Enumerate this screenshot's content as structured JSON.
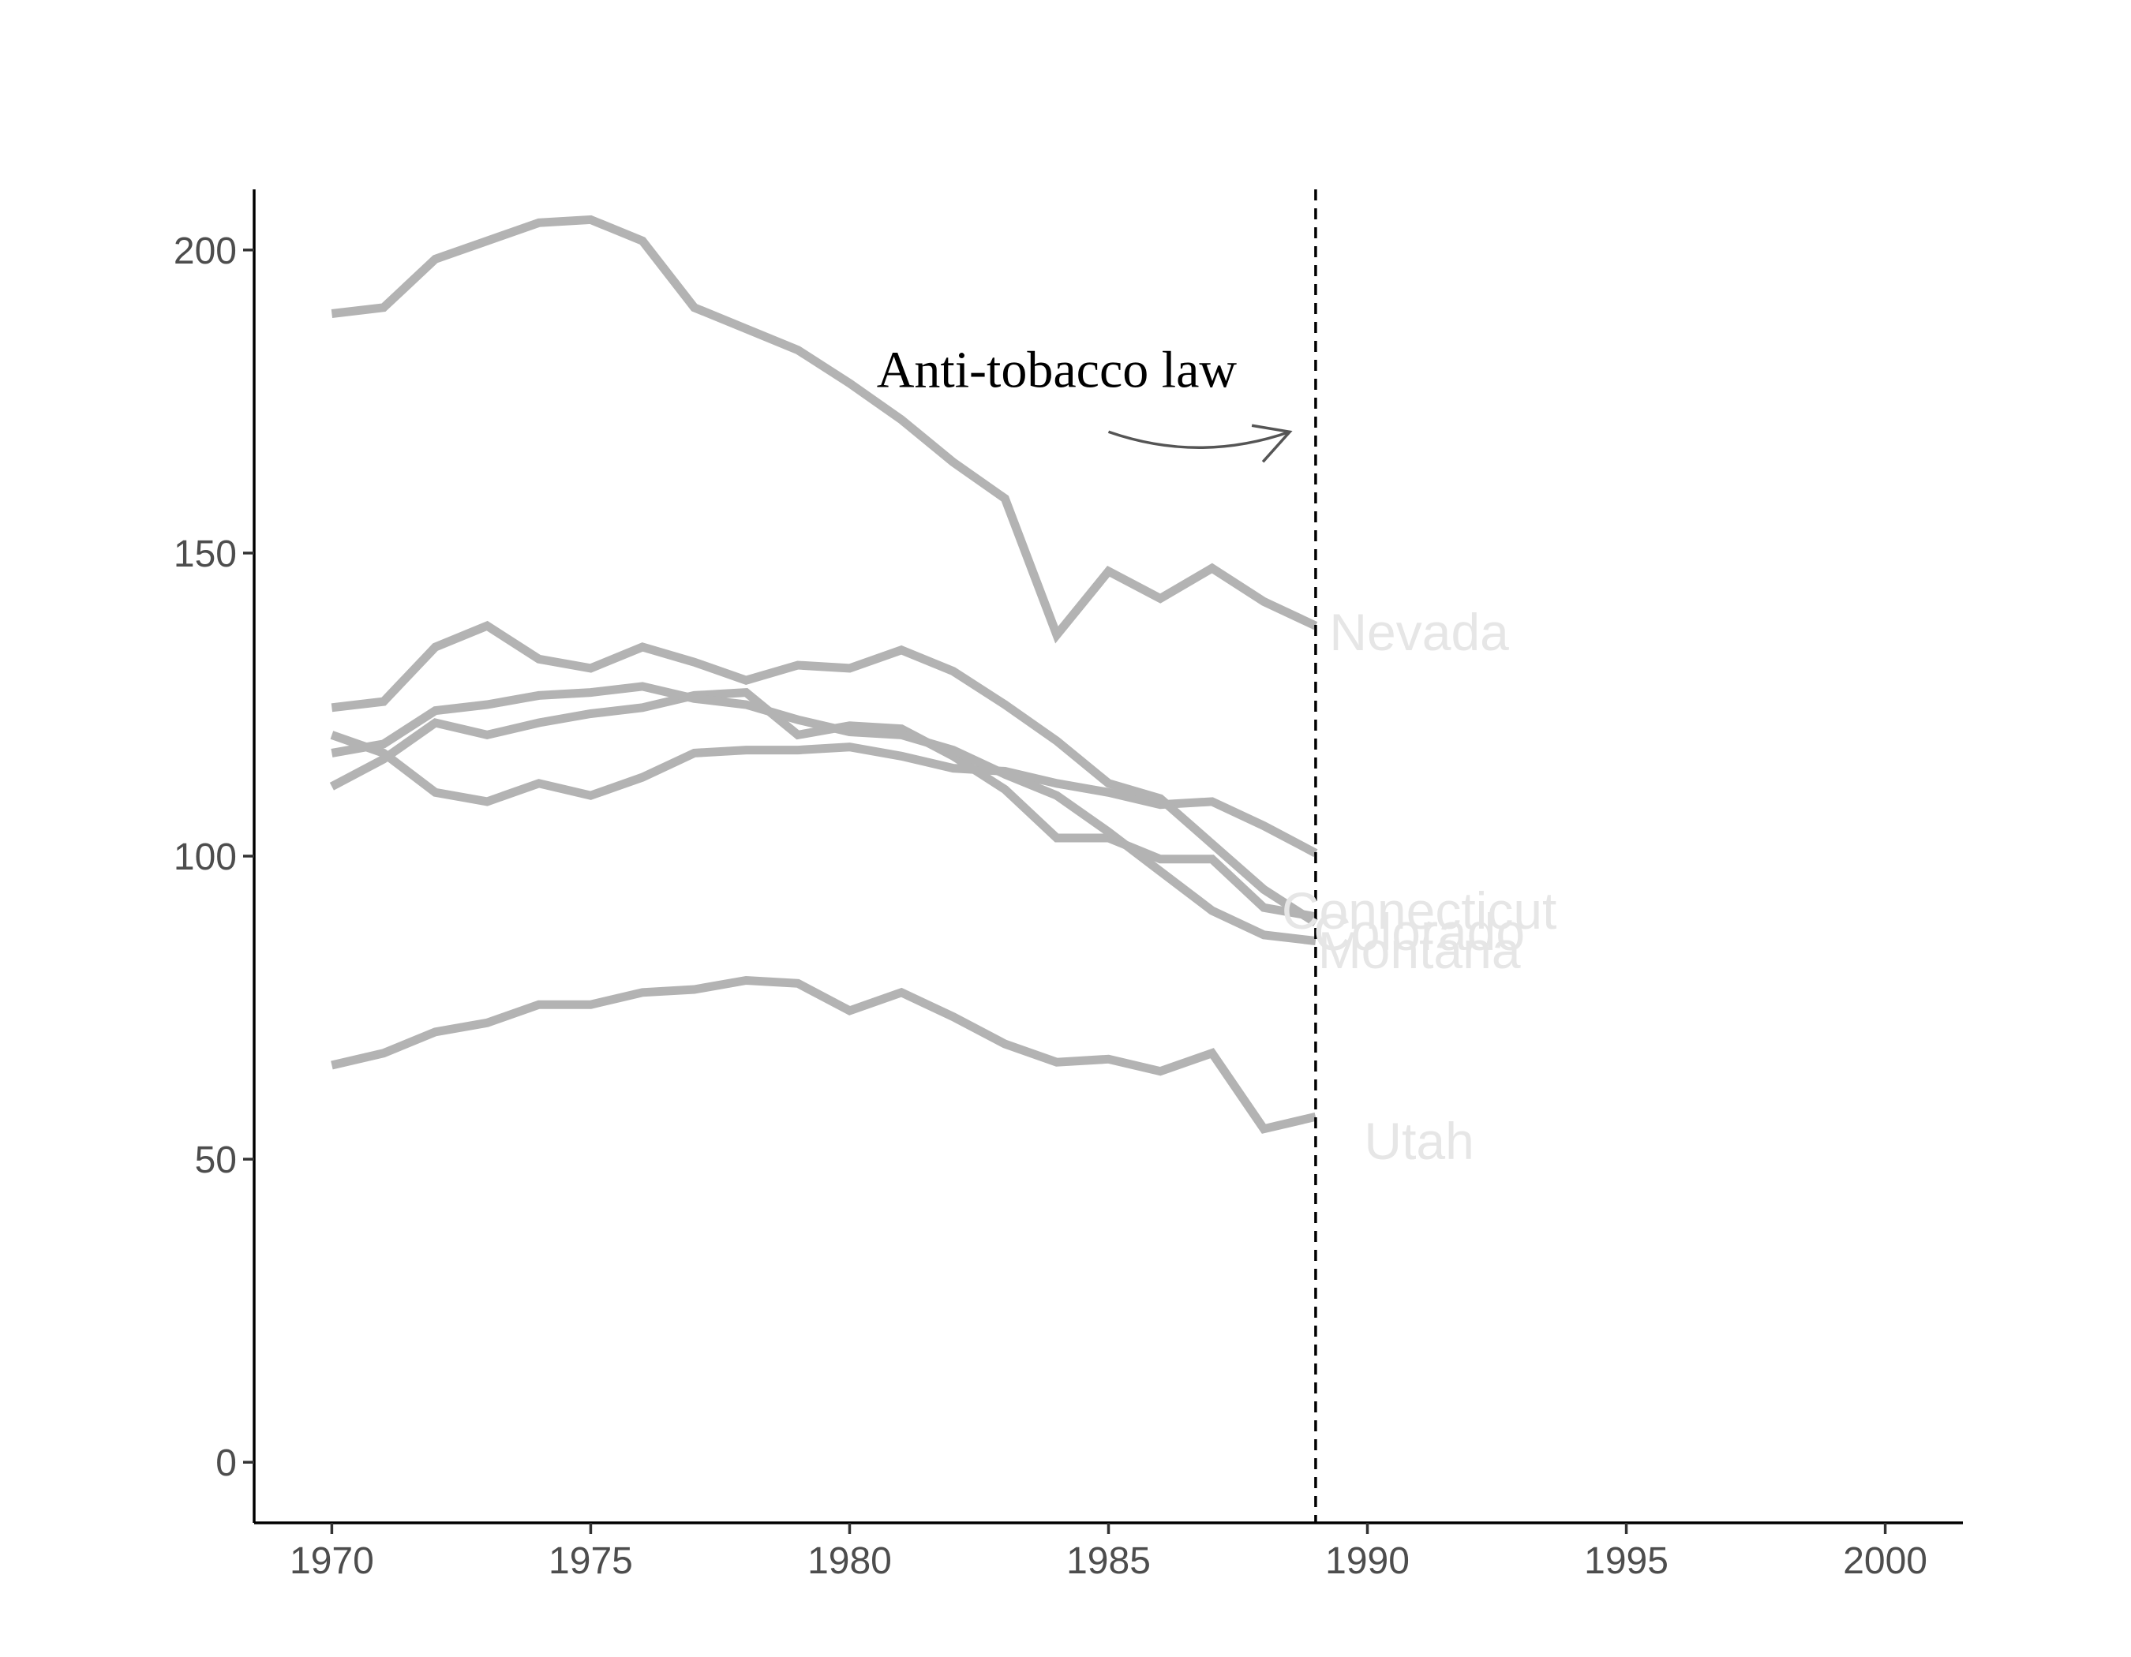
{
  "chart_data": {
    "type": "line",
    "title": "",
    "xlabel": "",
    "ylabel": "",
    "xlim": [
      1968.5,
      2001.5
    ],
    "ylim": [
      -10,
      210
    ],
    "x_ticks": [
      "1970",
      "1975",
      "1980",
      "1985",
      "1990",
      "1995",
      "2000"
    ],
    "y_ticks": [
      "0",
      "50",
      "100",
      "150",
      "200"
    ],
    "grid": false,
    "line_color": "#b3b3b3",
    "label_color": "#e6e6e6",
    "x": [
      1970,
      1971,
      1972,
      1973,
      1974,
      1975,
      1976,
      1977,
      1978,
      1979,
      1980,
      1981,
      1982,
      1983,
      1984,
      1985,
      1986,
      1987,
      1988,
      1989
    ],
    "series": [
      {
        "name": "Nevada",
        "label_y": 137,
        "values": [
          189.5,
          190.5,
          198.5,
          201.5,
          204.5,
          205,
          201.5,
          190.5,
          187,
          183.5,
          178,
          172,
          165,
          159,
          136.5,
          147,
          142.5,
          147.5,
          142,
          138
        ]
      },
      {
        "name": "Connecticut",
        "label_y": 91,
        "values": [
          120,
          117,
          110.5,
          109,
          112,
          110,
          113,
          117,
          117.5,
          117.5,
          118,
          116.5,
          114.5,
          114,
          112,
          110.5,
          108.5,
          109,
          105,
          100.5
        ]
      },
      {
        "name": "Colorado",
        "label_y": 87.5,
        "values": [
          124.5,
          125.5,
          134.5,
          138,
          132.5,
          131,
          134.5,
          132,
          129,
          131.5,
          131,
          134,
          130.5,
          125,
          119,
          112,
          109.5,
          102,
          94.5,
          89
        ]
      },
      {
        "name": "Montana",
        "label_y": 84.5,
        "values": [
          111.5,
          116,
          122,
          120,
          122,
          123.5,
          124.5,
          126.5,
          127,
          120,
          121.5,
          121,
          116.5,
          111,
          103,
          103,
          99.5,
          99.5,
          91.5,
          90
        ]
      },
      {
        "name": "",
        "label_y": null,
        "values": [
          117,
          118.5,
          124,
          125,
          126.5,
          127,
          128,
          126,
          125,
          122.5,
          120.5,
          120,
          117.5,
          113.5,
          110,
          104,
          97.5,
          91,
          87,
          86
        ]
      },
      {
        "name": "Utah",
        "label_y": 53,
        "values": [
          65.5,
          67.5,
          71,
          72.5,
          75.5,
          75.5,
          77.5,
          78,
          79.5,
          79,
          74.5,
          77.5,
          73.5,
          69,
          66,
          66.5,
          64.5,
          67.5,
          55,
          57
        ]
      }
    ],
    "annotations": [
      {
        "type": "vline",
        "x": 1989,
        "style": "dashed",
        "color": "#000000"
      },
      {
        "type": "text",
        "text": "Anti-tobacco law",
        "x": 1984,
        "y": 180,
        "color": "#000000"
      },
      {
        "type": "arrow",
        "from": [
          1985,
          170
        ],
        "to": [
          1988.5,
          170
        ],
        "color": "#555555"
      }
    ]
  }
}
